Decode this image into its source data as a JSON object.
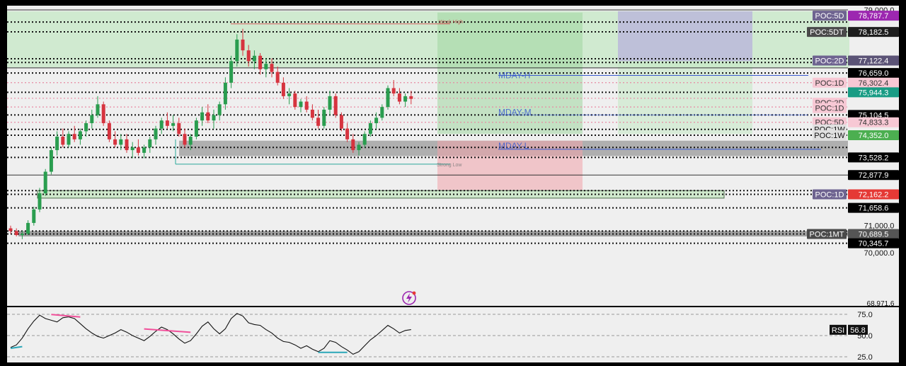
{
  "chart_data": [
    {
      "type": "candlestick",
      "price_axis": {
        "ylim": [
          68000,
          79000
        ],
        "ticks": [
          {
            "value": 79000,
            "label": "79,000.0"
          },
          {
            "value": 71000,
            "label": "71,000.0"
          },
          {
            "value": 70000,
            "label": "70,000.0"
          }
        ],
        "partial_label": "68,971.6"
      },
      "price_tags": [
        {
          "value": 78787.7,
          "label": "78,787.7",
          "color": "#9c27b0"
        },
        {
          "value": 78182.5,
          "label": "78,182.5",
          "color": "#1e1e1e"
        },
        {
          "value": 77122.4,
          "label": "77,122.4",
          "color": "#5b5376"
        },
        {
          "value": 76659.0,
          "label": "76,659.0",
          "color": "#000000"
        },
        {
          "value": 76302.4,
          "label": "76,302.4",
          "color": "#f7c8d4",
          "text_color": "#333333"
        },
        {
          "value": 75944.3,
          "label": "75,944.3",
          "color": "#189c84"
        },
        {
          "value": 75104.5,
          "label": "75,104.5",
          "color": "#000000"
        },
        {
          "value": 74833.3,
          "label": "74,833.3",
          "color": "#f7c8d4",
          "text_color": "#333333"
        },
        {
          "value": 74352.0,
          "label": "74,352.0",
          "color": "#4caf50"
        },
        {
          "value": 73528.2,
          "label": "73,528.2",
          "color": "#000000"
        },
        {
          "value": 72877.9,
          "label": "72,877.9",
          "color": "#000000"
        },
        {
          "value": 72162.2,
          "label": "72,162.2",
          "color": "#e53935"
        },
        {
          "value": 71658.6,
          "label": "71,658.6",
          "color": "#000000"
        },
        {
          "value": 70689.5,
          "label": "70,689.5",
          "color": "#555555"
        },
        {
          "value": 70345.7,
          "label": "70,345.7",
          "color": "#000000"
        }
      ],
      "poc_labels": [
        {
          "label": "POC:5D",
          "value": 78787.7,
          "color": "#6e6390"
        },
        {
          "label": "POC:5DT",
          "value": 78182.5,
          "color": "#4a4a4a"
        },
        {
          "label": "POC:2D",
          "value": 77122.4,
          "color": "#6e6390"
        },
        {
          "label": "POC:1D",
          "value": 76302.4,
          "color": "#f7c8d4",
          "text_color": "#333333"
        },
        {
          "label": "POC:2D",
          "value": 75560,
          "color": "#f7c8d4",
          "text_color": "#333333"
        },
        {
          "label": "POC:1D",
          "value": 75360,
          "color": "#f7c8d4",
          "text_color": "#333333"
        },
        {
          "label": "POC:5D",
          "value": 74833.3,
          "color": "#f7c8d4",
          "text_color": "#333333"
        },
        {
          "label": "POC:1W",
          "value": 74571.1,
          "color": "#e0e0e0",
          "text_color": "#111111"
        },
        {
          "label": "POC:1W",
          "value": 74352.0,
          "color": "#e0e0e0",
          "text_color": "#111111"
        },
        {
          "label": "POC:1D",
          "value": 72162.2,
          "color": "#6e6390"
        },
        {
          "label": "POC:1MT",
          "value": 70689.5,
          "color": "#4a4a4a"
        }
      ],
      "levels": [
        {
          "value": 79000,
          "style": "solid"
        },
        {
          "value": 78550,
          "style": "dotted"
        },
        {
          "value": 78187,
          "style": "dotted"
        },
        {
          "value": 77190,
          "style": "dotted"
        },
        {
          "value": 77050,
          "style": "dotted"
        },
        {
          "value": 76850,
          "style": "solid"
        },
        {
          "value": 76659,
          "style": "dotted"
        },
        {
          "value": 76302,
          "style": "dotted-pink"
        },
        {
          "value": 75944,
          "style": "dotted"
        },
        {
          "value": 75723,
          "style": "dotted-pink"
        },
        {
          "value": 75400,
          "style": "dotted-pink"
        },
        {
          "value": 75104,
          "style": "dotted"
        },
        {
          "value": 74833,
          "style": "dotted-pink"
        },
        {
          "value": 74571,
          "style": "dotted"
        },
        {
          "value": 74352,
          "style": "dotted"
        },
        {
          "value": 73900,
          "style": "dotted"
        },
        {
          "value": 73528,
          "style": "dotted"
        },
        {
          "value": 72877,
          "style": "solid"
        },
        {
          "value": 72300,
          "style": "dotted"
        },
        {
          "value": 72162,
          "style": "dotted"
        },
        {
          "value": 71658,
          "style": "dotted"
        },
        {
          "value": 70800,
          "style": "dotted"
        },
        {
          "value": 70690,
          "style": "dotted"
        },
        {
          "value": 70345,
          "style": "dotted"
        }
      ],
      "annotations": [
        {
          "text": "Weak High",
          "value": 78500,
          "color": "#c25050"
        },
        {
          "text": "Strong Low",
          "value": 73200,
          "color": "#7a7a7a"
        },
        {
          "text": "MDAY-H",
          "value": 76600,
          "color": "#3a5bd0"
        },
        {
          "text": "MDAY-M",
          "value": 75104,
          "color": "#3a5bd0"
        },
        {
          "text": "MDAY-L",
          "value": 73850,
          "color": "#3a5bd0"
        }
      ],
      "candles": [
        {
          "o": 70900,
          "h": 71000,
          "l": 70700,
          "c": 70800
        },
        {
          "o": 70800,
          "h": 70900,
          "l": 70600,
          "c": 70650
        },
        {
          "o": 70650,
          "h": 70800,
          "l": 70500,
          "c": 70700
        },
        {
          "o": 70700,
          "h": 71200,
          "l": 70650,
          "c": 71100
        },
        {
          "o": 71100,
          "h": 71700,
          "l": 71000,
          "c": 71600
        },
        {
          "o": 71600,
          "h": 72400,
          "l": 71500,
          "c": 72200
        },
        {
          "o": 72200,
          "h": 73100,
          "l": 72100,
          "c": 73000
        },
        {
          "o": 73000,
          "h": 73900,
          "l": 72900,
          "c": 73800
        },
        {
          "o": 73800,
          "h": 74500,
          "l": 73600,
          "c": 74300
        },
        {
          "o": 74300,
          "h": 74600,
          "l": 73900,
          "c": 74000
        },
        {
          "o": 74000,
          "h": 74500,
          "l": 73900,
          "c": 74400
        },
        {
          "o": 74400,
          "h": 74700,
          "l": 74100,
          "c": 74200
        },
        {
          "o": 74200,
          "h": 74600,
          "l": 74000,
          "c": 74500
        },
        {
          "o": 74500,
          "h": 74900,
          "l": 74300,
          "c": 74800
        },
        {
          "o": 74800,
          "h": 75300,
          "l": 74600,
          "c": 75100
        },
        {
          "o": 75100,
          "h": 75800,
          "l": 75000,
          "c": 75500
        },
        {
          "o": 75500,
          "h": 75600,
          "l": 74700,
          "c": 74800
        },
        {
          "o": 74800,
          "h": 74900,
          "l": 74100,
          "c": 74200
        },
        {
          "o": 74200,
          "h": 74500,
          "l": 73900,
          "c": 74000
        },
        {
          "o": 74000,
          "h": 74400,
          "l": 73800,
          "c": 74200
        },
        {
          "o": 74200,
          "h": 74400,
          "l": 73700,
          "c": 73800
        },
        {
          "o": 73800,
          "h": 74100,
          "l": 73500,
          "c": 73900
        },
        {
          "o": 73900,
          "h": 74200,
          "l": 73600,
          "c": 73700
        },
        {
          "o": 73700,
          "h": 74000,
          "l": 73500,
          "c": 73900
        },
        {
          "o": 73900,
          "h": 74300,
          "l": 73700,
          "c": 74200
        },
        {
          "o": 74200,
          "h": 74700,
          "l": 74000,
          "c": 74600
        },
        {
          "o": 74600,
          "h": 75000,
          "l": 74400,
          "c": 74900
        },
        {
          "o": 74900,
          "h": 75200,
          "l": 74600,
          "c": 74700
        },
        {
          "o": 74700,
          "h": 75100,
          "l": 74500,
          "c": 74800
        },
        {
          "o": 74800,
          "h": 75000,
          "l": 74300,
          "c": 74400
        },
        {
          "o": 74400,
          "h": 74600,
          "l": 73900,
          "c": 74000
        },
        {
          "o": 74000,
          "h": 74400,
          "l": 73800,
          "c": 74300
        },
        {
          "o": 74300,
          "h": 75000,
          "l": 74200,
          "c": 74900
        },
        {
          "o": 74900,
          "h": 75400,
          "l": 74700,
          "c": 75200
        },
        {
          "o": 75200,
          "h": 75500,
          "l": 74800,
          "c": 74900
        },
        {
          "o": 74900,
          "h": 75300,
          "l": 74600,
          "c": 75100
        },
        {
          "o": 75100,
          "h": 75600,
          "l": 74900,
          "c": 75500
        },
        {
          "o": 75500,
          "h": 76500,
          "l": 75300,
          "c": 76300
        },
        {
          "o": 76300,
          "h": 77300,
          "l": 76100,
          "c": 77100
        },
        {
          "o": 77100,
          "h": 78100,
          "l": 76900,
          "c": 77900
        },
        {
          "o": 77900,
          "h": 78300,
          "l": 77300,
          "c": 77500
        },
        {
          "o": 77500,
          "h": 77700,
          "l": 76900,
          "c": 77100
        },
        {
          "o": 77100,
          "h": 77500,
          "l": 76800,
          "c": 77300
        },
        {
          "o": 77300,
          "h": 77400,
          "l": 76600,
          "c": 76800
        },
        {
          "o": 76800,
          "h": 77200,
          "l": 76500,
          "c": 77000
        },
        {
          "o": 77000,
          "h": 77200,
          "l": 76500,
          "c": 76700
        },
        {
          "o": 76700,
          "h": 76900,
          "l": 76200,
          "c": 76300
        },
        {
          "o": 76300,
          "h": 76500,
          "l": 75700,
          "c": 75800
        },
        {
          "o": 75800,
          "h": 76100,
          "l": 75500,
          "c": 75900
        },
        {
          "o": 75900,
          "h": 76000,
          "l": 75300,
          "c": 75400
        },
        {
          "o": 75400,
          "h": 75700,
          "l": 75200,
          "c": 75600
        },
        {
          "o": 75600,
          "h": 75800,
          "l": 75200,
          "c": 75300
        },
        {
          "o": 75300,
          "h": 75500,
          "l": 74900,
          "c": 75000
        },
        {
          "o": 75000,
          "h": 75300,
          "l": 74600,
          "c": 74700
        },
        {
          "o": 74700,
          "h": 75400,
          "l": 74600,
          "c": 75300
        },
        {
          "o": 75300,
          "h": 76000,
          "l": 75100,
          "c": 75800
        },
        {
          "o": 75800,
          "h": 75900,
          "l": 75000,
          "c": 75100
        },
        {
          "o": 75100,
          "h": 75200,
          "l": 74500,
          "c": 74600
        },
        {
          "o": 74600,
          "h": 74800,
          "l": 74100,
          "c": 74200
        },
        {
          "o": 74200,
          "h": 74400,
          "l": 73700,
          "c": 73800
        },
        {
          "o": 73800,
          "h": 74100,
          "l": 73600,
          "c": 74000
        },
        {
          "o": 74000,
          "h": 74500,
          "l": 73900,
          "c": 74400
        },
        {
          "o": 74400,
          "h": 74900,
          "l": 74300,
          "c": 74800
        },
        {
          "o": 74800,
          "h": 75200,
          "l": 74600,
          "c": 75000
        },
        {
          "o": 75000,
          "h": 75500,
          "l": 74900,
          "c": 75400
        },
        {
          "o": 75400,
          "h": 76200,
          "l": 75300,
          "c": 76100
        },
        {
          "o": 76100,
          "h": 76400,
          "l": 75800,
          "c": 75900
        },
        {
          "o": 75900,
          "h": 76100,
          "l": 75500,
          "c": 75600
        },
        {
          "o": 75600,
          "h": 75900,
          "l": 75400,
          "c": 75800
        },
        {
          "o": 75800,
          "h": 76000,
          "l": 75500,
          "c": 75700
        }
      ]
    },
    {
      "type": "line",
      "name": "RSI",
      "ylim": [
        20,
        80
      ],
      "ticks": [
        {
          "value": 75,
          "label": "75.0"
        },
        {
          "value": 50,
          "label": "50.0"
        },
        {
          "value": 25,
          "label": "25.0"
        }
      ],
      "current": {
        "label": "RSI",
        "value": "56.8"
      },
      "values": [
        36,
        39,
        47,
        58,
        67,
        74,
        70,
        68,
        66,
        71,
        72,
        70,
        64,
        58,
        53,
        49,
        47,
        50,
        53,
        57,
        54,
        50,
        47,
        44,
        49,
        55,
        60,
        57,
        52,
        46,
        41,
        44,
        52,
        61,
        66,
        58,
        52,
        58,
        70,
        76,
        73,
        65,
        63,
        62,
        57,
        53,
        47,
        43,
        42,
        39,
        35,
        38,
        34,
        31,
        35,
        44,
        42,
        37,
        33,
        28,
        31,
        38,
        45,
        50,
        56,
        62,
        58,
        53,
        56,
        57
      ]
    }
  ]
}
